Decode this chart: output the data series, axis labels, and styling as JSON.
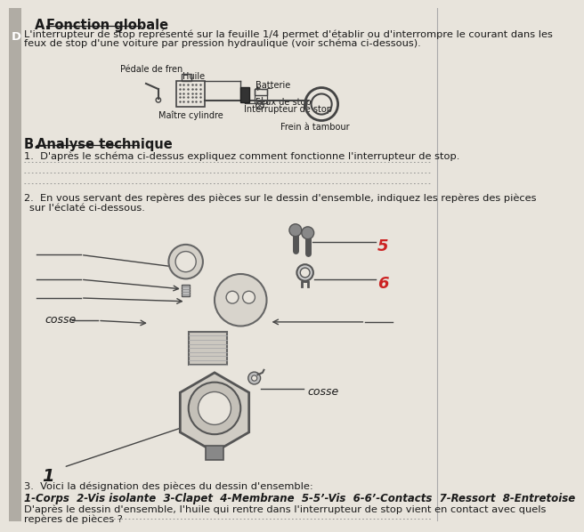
{
  "bg_color": "#e8e4dc",
  "text_color": "#1a1a1a",
  "label_5": "5",
  "label_6": "6",
  "label_1": "1",
  "label_cosse1": "cosse",
  "label_cosse2": "cosse",
  "q3_pieces": "1-Corps  2-Vis isolante  3-Clapet  4-Membrane  5-5’-Vis  6-6’-Contacts  7-Ressort  8-Entretoise"
}
